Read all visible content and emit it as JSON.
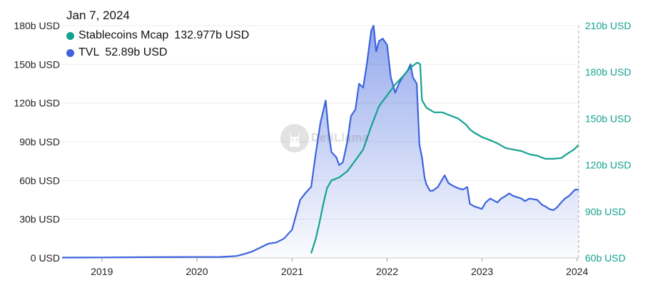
{
  "tooltip": {
    "date": "Jan 7, 2024",
    "rows": [
      {
        "name": "Stablecoins Mcap",
        "value": "132.977b USD",
        "color": "#14a190"
      },
      {
        "name": "TVL",
        "value": "52.89b USD",
        "color": "#3d63dd"
      }
    ]
  },
  "watermark": "DefiLlama",
  "chart_data": {
    "type": "line",
    "x_ticks": [
      "2019",
      "2020",
      "2021",
      "2022",
      "2023",
      "2024"
    ],
    "y_left_ticks": [
      "0 USD",
      "30b USD",
      "60b USD",
      "90b USD",
      "120b USD",
      "150b USD",
      "180b USD"
    ],
    "y_right_ticks": [
      "60b USD",
      "90b USD",
      "120b USD",
      "150b USD",
      "180b USD",
      "210b USD"
    ],
    "y_left_range": [
      0,
      180
    ],
    "y_right_range": [
      60,
      210
    ],
    "grid": true,
    "series": [
      {
        "name": "TVL",
        "axis": "left",
        "color": "#3d63dd",
        "area": true,
        "points": [
          [
            "2018-08-01",
            0.3
          ],
          [
            "2019-01-01",
            0.4
          ],
          [
            "2019-07-01",
            0.6
          ],
          [
            "2020-01-01",
            0.7
          ],
          [
            "2020-04-01",
            0.8
          ],
          [
            "2020-06-01",
            1.5
          ],
          [
            "2020-07-01",
            3
          ],
          [
            "2020-08-01",
            5
          ],
          [
            "2020-09-01",
            8
          ],
          [
            "2020-10-01",
            11
          ],
          [
            "2020-11-01",
            12
          ],
          [
            "2020-12-01",
            15
          ],
          [
            "2021-01-01",
            22
          ],
          [
            "2021-02-01",
            45
          ],
          [
            "2021-02-20",
            50
          ],
          [
            "2021-03-01",
            52
          ],
          [
            "2021-03-15",
            55
          ],
          [
            "2021-04-01",
            80
          ],
          [
            "2021-04-20",
            105
          ],
          [
            "2021-05-10",
            122
          ],
          [
            "2021-05-20",
            100
          ],
          [
            "2021-06-01",
            82
          ],
          [
            "2021-06-20",
            78
          ],
          [
            "2021-07-01",
            72
          ],
          [
            "2021-07-15",
            74
          ],
          [
            "2021-08-01",
            90
          ],
          [
            "2021-08-15",
            110
          ],
          [
            "2021-09-01",
            115
          ],
          [
            "2021-09-15",
            135
          ],
          [
            "2021-10-01",
            132
          ],
          [
            "2021-10-15",
            150
          ],
          [
            "2021-11-01",
            176
          ],
          [
            "2021-11-10",
            180
          ],
          [
            "2021-11-20",
            160
          ],
          [
            "2021-12-01",
            168
          ],
          [
            "2021-12-15",
            170
          ],
          [
            "2022-01-01",
            165
          ],
          [
            "2022-01-15",
            140
          ],
          [
            "2022-02-01",
            128
          ],
          [
            "2022-02-15",
            135
          ],
          [
            "2022-03-01",
            140
          ],
          [
            "2022-03-20",
            145
          ],
          [
            "2022-04-01",
            150
          ],
          [
            "2022-04-10",
            140
          ],
          [
            "2022-04-25",
            135
          ],
          [
            "2022-05-05",
            88
          ],
          [
            "2022-05-15",
            78
          ],
          [
            "2022-05-25",
            62
          ],
          [
            "2022-06-01",
            57
          ],
          [
            "2022-06-15",
            52
          ],
          [
            "2022-06-25",
            52
          ],
          [
            "2022-07-15",
            55
          ],
          [
            "2022-08-10",
            64
          ],
          [
            "2022-08-25",
            58
          ],
          [
            "2022-09-10",
            56
          ],
          [
            "2022-10-01",
            54
          ],
          [
            "2022-10-20",
            53
          ],
          [
            "2022-11-05",
            55
          ],
          [
            "2022-11-15",
            42
          ],
          [
            "2022-12-01",
            40
          ],
          [
            "2022-12-31",
            38
          ],
          [
            "2023-01-15",
            43
          ],
          [
            "2023-02-01",
            46
          ],
          [
            "2023-03-01",
            43
          ],
          [
            "2023-03-15",
            46
          ],
          [
            "2023-04-01",
            48
          ],
          [
            "2023-04-15",
            50
          ],
          [
            "2023-05-01",
            48
          ],
          [
            "2023-06-01",
            46
          ],
          [
            "2023-06-15",
            44
          ],
          [
            "2023-07-01",
            46
          ],
          [
            "2023-08-01",
            45
          ],
          [
            "2023-08-20",
            41
          ],
          [
            "2023-09-01",
            40
          ],
          [
            "2023-09-15",
            38
          ],
          [
            "2023-10-01",
            37
          ],
          [
            "2023-10-15",
            39
          ],
          [
            "2023-11-01",
            43
          ],
          [
            "2023-11-15",
            46
          ],
          [
            "2023-12-01",
            48
          ],
          [
            "2023-12-15",
            51
          ],
          [
            "2023-12-25",
            53
          ],
          [
            "2024-01-07",
            52.89
          ]
        ]
      },
      {
        "name": "Stablecoins Mcap",
        "axis": "right",
        "color": "#14a190",
        "area": false,
        "points": [
          [
            "2021-03-15",
            63
          ],
          [
            "2021-04-01",
            72
          ],
          [
            "2021-04-15",
            82
          ],
          [
            "2021-05-01",
            95
          ],
          [
            "2021-05-15",
            105
          ],
          [
            "2021-06-01",
            110
          ],
          [
            "2021-07-01",
            112
          ],
          [
            "2021-08-01",
            116
          ],
          [
            "2021-09-01",
            123
          ],
          [
            "2021-10-01",
            130
          ],
          [
            "2021-11-01",
            145
          ],
          [
            "2021-12-01",
            158
          ],
          [
            "2022-01-01",
            165
          ],
          [
            "2022-02-01",
            172
          ],
          [
            "2022-03-01",
            177
          ],
          [
            "2022-04-01",
            183
          ],
          [
            "2022-04-25",
            186
          ],
          [
            "2022-05-01",
            186
          ],
          [
            "2022-05-08",
            185
          ],
          [
            "2022-05-15",
            162
          ],
          [
            "2022-06-01",
            157
          ],
          [
            "2022-07-01",
            154
          ],
          [
            "2022-08-01",
            154
          ],
          [
            "2022-09-01",
            152
          ],
          [
            "2022-10-01",
            150
          ],
          [
            "2022-11-01",
            146
          ],
          [
            "2022-11-15",
            143
          ],
          [
            "2022-12-01",
            141
          ],
          [
            "2023-01-01",
            138
          ],
          [
            "2023-02-01",
            136
          ],
          [
            "2023-03-01",
            134
          ],
          [
            "2023-04-01",
            131
          ],
          [
            "2023-05-01",
            130
          ],
          [
            "2023-06-01",
            129
          ],
          [
            "2023-07-01",
            127
          ],
          [
            "2023-08-01",
            126
          ],
          [
            "2023-09-01",
            124
          ],
          [
            "2023-10-01",
            124
          ],
          [
            "2023-11-01",
            124.5
          ],
          [
            "2023-12-01",
            128
          ],
          [
            "2023-12-20",
            130
          ],
          [
            "2024-01-07",
            132.977
          ]
        ]
      }
    ],
    "crosshair_date": "2024-01-07"
  }
}
